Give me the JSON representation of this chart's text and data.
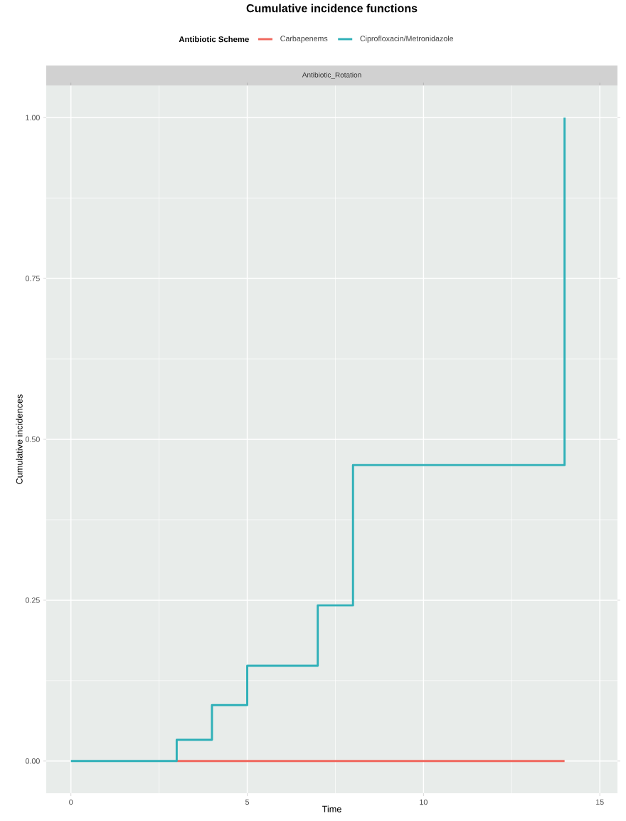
{
  "chart_data": {
    "type": "step",
    "title": "Cumulative incidence functions",
    "annotations": [
      "Antibiotic_Rotation"
    ],
    "xlabel": "Time",
    "ylabel": "Cumulative incidences",
    "legend_title": "Antibiotic Scheme",
    "series": [
      {
        "name": "Carbapenems",
        "color": "#f0685e",
        "x": [
          3,
          14
        ],
        "values": [
          0,
          0
        ]
      },
      {
        "name": "Ciprofloxacin/Metronidazole",
        "color": "#2fb0b8",
        "x": [
          0,
          3,
          4,
          5,
          7,
          8,
          14
        ],
        "values": [
          0,
          0.033,
          0.087,
          0.148,
          0.242,
          0.46,
          1.0
        ]
      }
    ],
    "xlim": [
      -0.7,
      15.5
    ],
    "ylim": [
      -0.05,
      1.05
    ],
    "xticks": [
      0,
      5,
      10,
      15
    ],
    "yticks": [
      {
        "value": 0,
        "label": "0.00"
      },
      {
        "value": 0.25,
        "label": "0.25"
      },
      {
        "value": 0.5,
        "label": "0.50"
      },
      {
        "value": 0.75,
        "label": "0.75"
      },
      {
        "value": 1.0,
        "label": "1.00"
      }
    ],
    "grid": true,
    "legend": "top",
    "line_style": "solid",
    "marker": "none"
  }
}
